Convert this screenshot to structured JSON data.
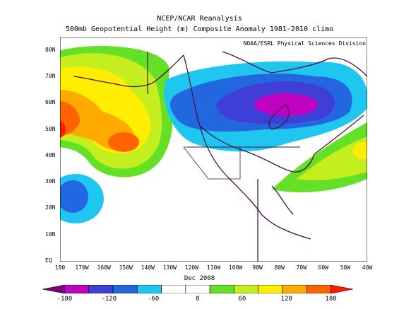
{
  "title_line_1": "NCEP/NCAR Reanalysis",
  "title_line_2": "500mb Geopotential Height (m) Composite Anomaly 1981-2010 climo",
  "credit": "NOAA/ESRL Physical Sciences Division",
  "period": "Dec 2008",
  "lat_labels": [
    "80N",
    "70N",
    "60N",
    "50N",
    "40N",
    "30N",
    "20N",
    "10N",
    "EQ"
  ],
  "lon_labels": [
    "180",
    "170W",
    "160W",
    "150W",
    "140W",
    "130W",
    "120W",
    "110W",
    "100W",
    "90W",
    "80W",
    "70W",
    "60W",
    "50W",
    "40W"
  ],
  "colorbar": {
    "labels": [
      "-180",
      "-120",
      "-60",
      "0",
      "60",
      "120",
      "180"
    ],
    "colors": [
      "#7d0079",
      "#c000c2",
      "#3f3fd8",
      "#2266e0",
      "#1ec6f0",
      "#ffffff",
      "#ffffff",
      "#64e026",
      "#c4ee1d",
      "#ffee00",
      "#ffaa00",
      "#ff6400",
      "#ff1a00"
    ]
  },
  "map": {
    "projection": "cylindrical",
    "extent": {
      "lon_min": -180,
      "lon_max": -40,
      "lat_min": 0,
      "lat_max": 85
    }
  }
}
